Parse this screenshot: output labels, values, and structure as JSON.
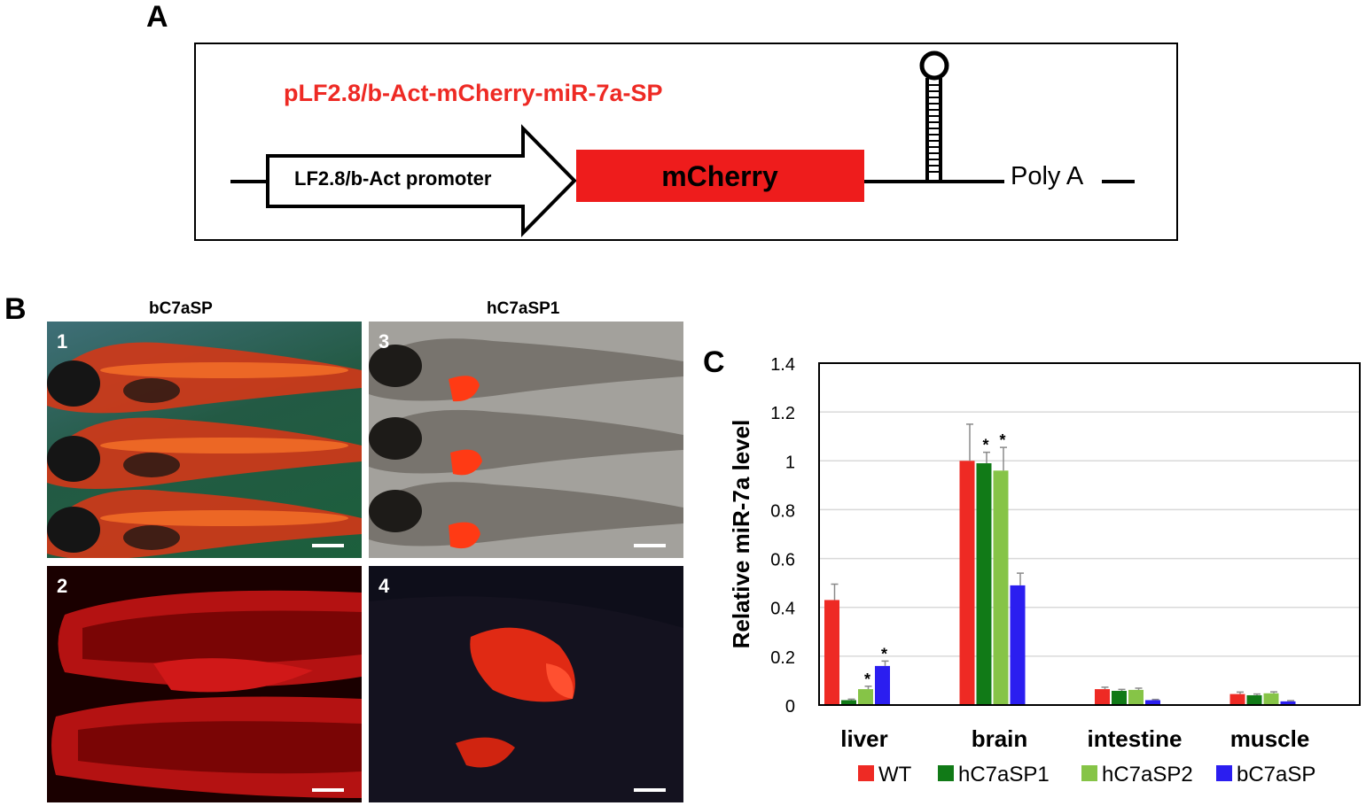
{
  "panels": {
    "a_label": "A",
    "b_label": "B",
    "c_label": "C"
  },
  "construct": {
    "name": "pLF2.8/b-Act-mCherry-miR-7a-SP",
    "promoter_label": "LF2.8/b-Act promoter",
    "reporter_label": "mCherry",
    "polya_label": "Poly A",
    "name_color": "#ee2a24",
    "reporter_color": "#ee1c1c"
  },
  "images": {
    "left_title": "bC7aSP",
    "right_title": "hC7aSP1",
    "panel_numbers": [
      "1",
      "2",
      "3",
      "4"
    ]
  },
  "chart_data": {
    "type": "bar",
    "categories": [
      "liver",
      "brain",
      "intestine",
      "muscle"
    ],
    "ylabel": "Relative miR-7a level",
    "ylim": [
      0,
      1.4
    ],
    "yticks": [
      "0",
      "0.2",
      "0.4",
      "0.6",
      "0.8",
      "1",
      "1.2",
      "1.4"
    ],
    "grid": true,
    "legend_position": "bottom",
    "series": [
      {
        "name": "WT",
        "color": "#ee2a24",
        "values": [
          0.43,
          1.0,
          0.065,
          0.045
        ],
        "errors": [
          0.065,
          0.15,
          0.008,
          0.008
        ],
        "significant": [
          false,
          false,
          false,
          false
        ]
      },
      {
        "name": "hC7aSP1",
        "color": "#117a17",
        "values": [
          0.02,
          0.99,
          0.058,
          0.04
        ],
        "errors": [
          0.004,
          0.045,
          0.006,
          0.005
        ],
        "significant": [
          false,
          true,
          false,
          false
        ]
      },
      {
        "name": "hC7aSP2",
        "color": "#86c447",
        "values": [
          0.065,
          0.96,
          0.062,
          0.048
        ],
        "errors": [
          0.012,
          0.095,
          0.007,
          0.006
        ],
        "significant": [
          true,
          true,
          false,
          false
        ]
      },
      {
        "name": "bC7aSP",
        "color": "#2b1ef0",
        "values": [
          0.16,
          0.49,
          0.02,
          0.015
        ],
        "errors": [
          0.02,
          0.05,
          0.003,
          0.003
        ],
        "significant": [
          true,
          false,
          false,
          false
        ]
      }
    ],
    "significance_marker": "*"
  }
}
